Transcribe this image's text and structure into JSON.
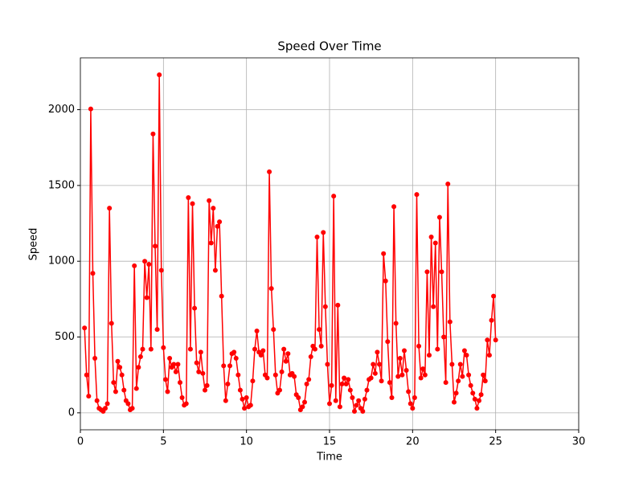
{
  "chart_data": {
    "type": "line",
    "title": "Speed Over Time",
    "x_label": "Time",
    "y_label": "Speed",
    "x": [
      0.25,
      0.375,
      0.5,
      0.625,
      0.75,
      0.875,
      1,
      1.125,
      1.25,
      1.375,
      1.5,
      1.625,
      1.75,
      1.875,
      2,
      2.125,
      2.25,
      2.375,
      2.5,
      2.625,
      2.75,
      2.875,
      3,
      3.125,
      3.25,
      3.375,
      3.5,
      3.625,
      3.75,
      3.875,
      4,
      4.125,
      4.25,
      4.375,
      4.5,
      4.625,
      4.75,
      4.875,
      5,
      5.125,
      5.25,
      5.375,
      5.5,
      5.625,
      5.75,
      5.875,
      6,
      6.125,
      6.25,
      6.375,
      6.5,
      6.625,
      6.75,
      6.875,
      7,
      7.125,
      7.25,
      7.375,
      7.5,
      7.625,
      7.75,
      7.875,
      8,
      8.125,
      8.25,
      8.375,
      8.5,
      8.625,
      8.75,
      8.875,
      9,
      9.125,
      9.25,
      9.375,
      9.5,
      9.625,
      9.75,
      9.875,
      10,
      10.125,
      10.25,
      10.375,
      10.5,
      10.625,
      10.75,
      10.875,
      11,
      11.125,
      11.25,
      11.375,
      11.5,
      11.625,
      11.75,
      11.875,
      12,
      12.125,
      12.25,
      12.375,
      12.5,
      12.625,
      12.75,
      12.875,
      13,
      13.125,
      13.25,
      13.375,
      13.5,
      13.625,
      13.75,
      13.875,
      14,
      14.125,
      14.25,
      14.375,
      14.5,
      14.625,
      14.75,
      14.875,
      15,
      15.125,
      15.25,
      15.375,
      15.5,
      15.625,
      15.75,
      15.875,
      16,
      16.125,
      16.25,
      16.375,
      16.5,
      16.625,
      16.75,
      16.875,
      17,
      17.125,
      17.25,
      17.375,
      17.5,
      17.625,
      17.75,
      17.875,
      18,
      18.125,
      18.25,
      18.375,
      18.5,
      18.625,
      18.75,
      18.875,
      19,
      19.125,
      19.25,
      19.375,
      19.5,
      19.625,
      19.75,
      19.875,
      20,
      20.125,
      20.25,
      20.375,
      20.5,
      20.625,
      20.75,
      20.875,
      21,
      21.125,
      21.25,
      21.375,
      21.5,
      21.625,
      21.75,
      21.875,
      22,
      22.125,
      22.25,
      22.375,
      22.5,
      22.625,
      22.75,
      22.875,
      23,
      23.125,
      23.25,
      23.375,
      23.5,
      23.625,
      23.75,
      23.875,
      24,
      24.125,
      24.25,
      24.375,
      24.5,
      24.625,
      24.75,
      24.875,
      25
    ],
    "series": [
      {
        "name": "Speed",
        "color": "#ff0000",
        "values": [
          560,
          250,
          110,
          2005,
          920,
          360,
          80,
          30,
          20,
          10,
          30,
          60,
          1350,
          590,
          200,
          140,
          340,
          300,
          250,
          150,
          80,
          60,
          20,
          30,
          970,
          160,
          300,
          370,
          420,
          1000,
          760,
          980,
          420,
          1840,
          1100,
          550,
          2230,
          940,
          430,
          220,
          140,
          360,
          300,
          320,
          270,
          320,
          200,
          100,
          50,
          60,
          1420,
          420,
          1380,
          690,
          330,
          270,
          400,
          260,
          150,
          180,
          1400,
          1120,
          1350,
          940,
          1230,
          1260,
          770,
          310,
          80,
          190,
          310,
          390,
          400,
          360,
          250,
          150,
          90,
          30,
          100,
          40,
          50,
          210,
          420,
          540,
          400,
          380,
          410,
          250,
          230,
          1590,
          820,
          550,
          250,
          130,
          150,
          270,
          420,
          340,
          390,
          250,
          260,
          240,
          120,
          100,
          20,
          40,
          70,
          190,
          220,
          370,
          440,
          420,
          1160,
          550,
          440,
          1190,
          700,
          320,
          60,
          180,
          1430,
          80,
          710,
          40,
          190,
          230,
          190,
          220,
          150,
          100,
          10,
          50,
          80,
          30,
          10,
          90,
          150,
          220,
          230,
          320,
          260,
          400,
          320,
          210,
          1050,
          870,
          470,
          200,
          100,
          1360,
          590,
          240,
          360,
          250,
          410,
          280,
          140,
          60,
          30,
          100,
          1440,
          440,
          230,
          290,
          250,
          930,
          380,
          1160,
          700,
          1120,
          420,
          1290,
          930,
          500,
          200,
          1510,
          600,
          320,
          70,
          130,
          210,
          320,
          240,
          410,
          380,
          250,
          180,
          130,
          90,
          30,
          80,
          120,
          250,
          210,
          480,
          380,
          610,
          770,
          480
        ]
      }
    ],
    "xlim": [
      0,
      30
    ],
    "xticks": [
      0,
      5,
      10,
      15,
      20,
      25,
      30
    ],
    "ylim": [
      -112,
      2342
    ],
    "yticks": [
      0,
      500,
      1000,
      1500,
      2000
    ],
    "grid": true
  }
}
